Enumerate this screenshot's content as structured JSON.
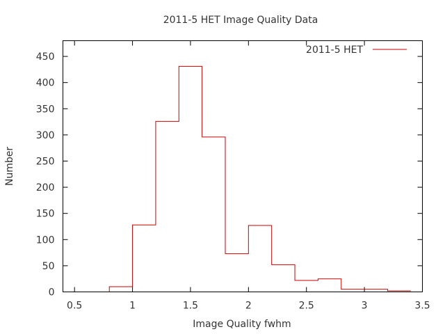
{
  "chart_data": {
    "type": "bar",
    "title": "2011-5 HET Image Quality Data",
    "xlabel": "Image Quality fwhm",
    "ylabel": "Number",
    "xlim": [
      0.4,
      3.5
    ],
    "ylim": [
      0,
      480
    ],
    "xticks": [
      0.5,
      1,
      1.5,
      2,
      2.5,
      3,
      3.5
    ],
    "xtick_labels": [
      "0.5",
      "1",
      "1.5",
      "2",
      "2.5",
      "3",
      "3.5"
    ],
    "yticks": [
      0,
      50,
      100,
      150,
      200,
      250,
      300,
      350,
      400,
      450
    ],
    "ytick_labels": [
      "0",
      "50",
      "100",
      "150",
      "200",
      "250",
      "300",
      "350",
      "400",
      "450"
    ],
    "grid": false,
    "legend": "top-right",
    "series": [
      {
        "name": "2011-5 HET",
        "color": "#cc0000",
        "bin_edges": [
          0.8,
          1.0,
          1.2,
          1.4,
          1.6,
          1.8,
          2.0,
          2.2,
          2.4,
          2.6,
          2.8,
          3.0,
          3.2,
          3.4
        ],
        "values": [
          10,
          128,
          326,
          431,
          296,
          73,
          127,
          52,
          22,
          25,
          5,
          5,
          2
        ]
      }
    ]
  }
}
